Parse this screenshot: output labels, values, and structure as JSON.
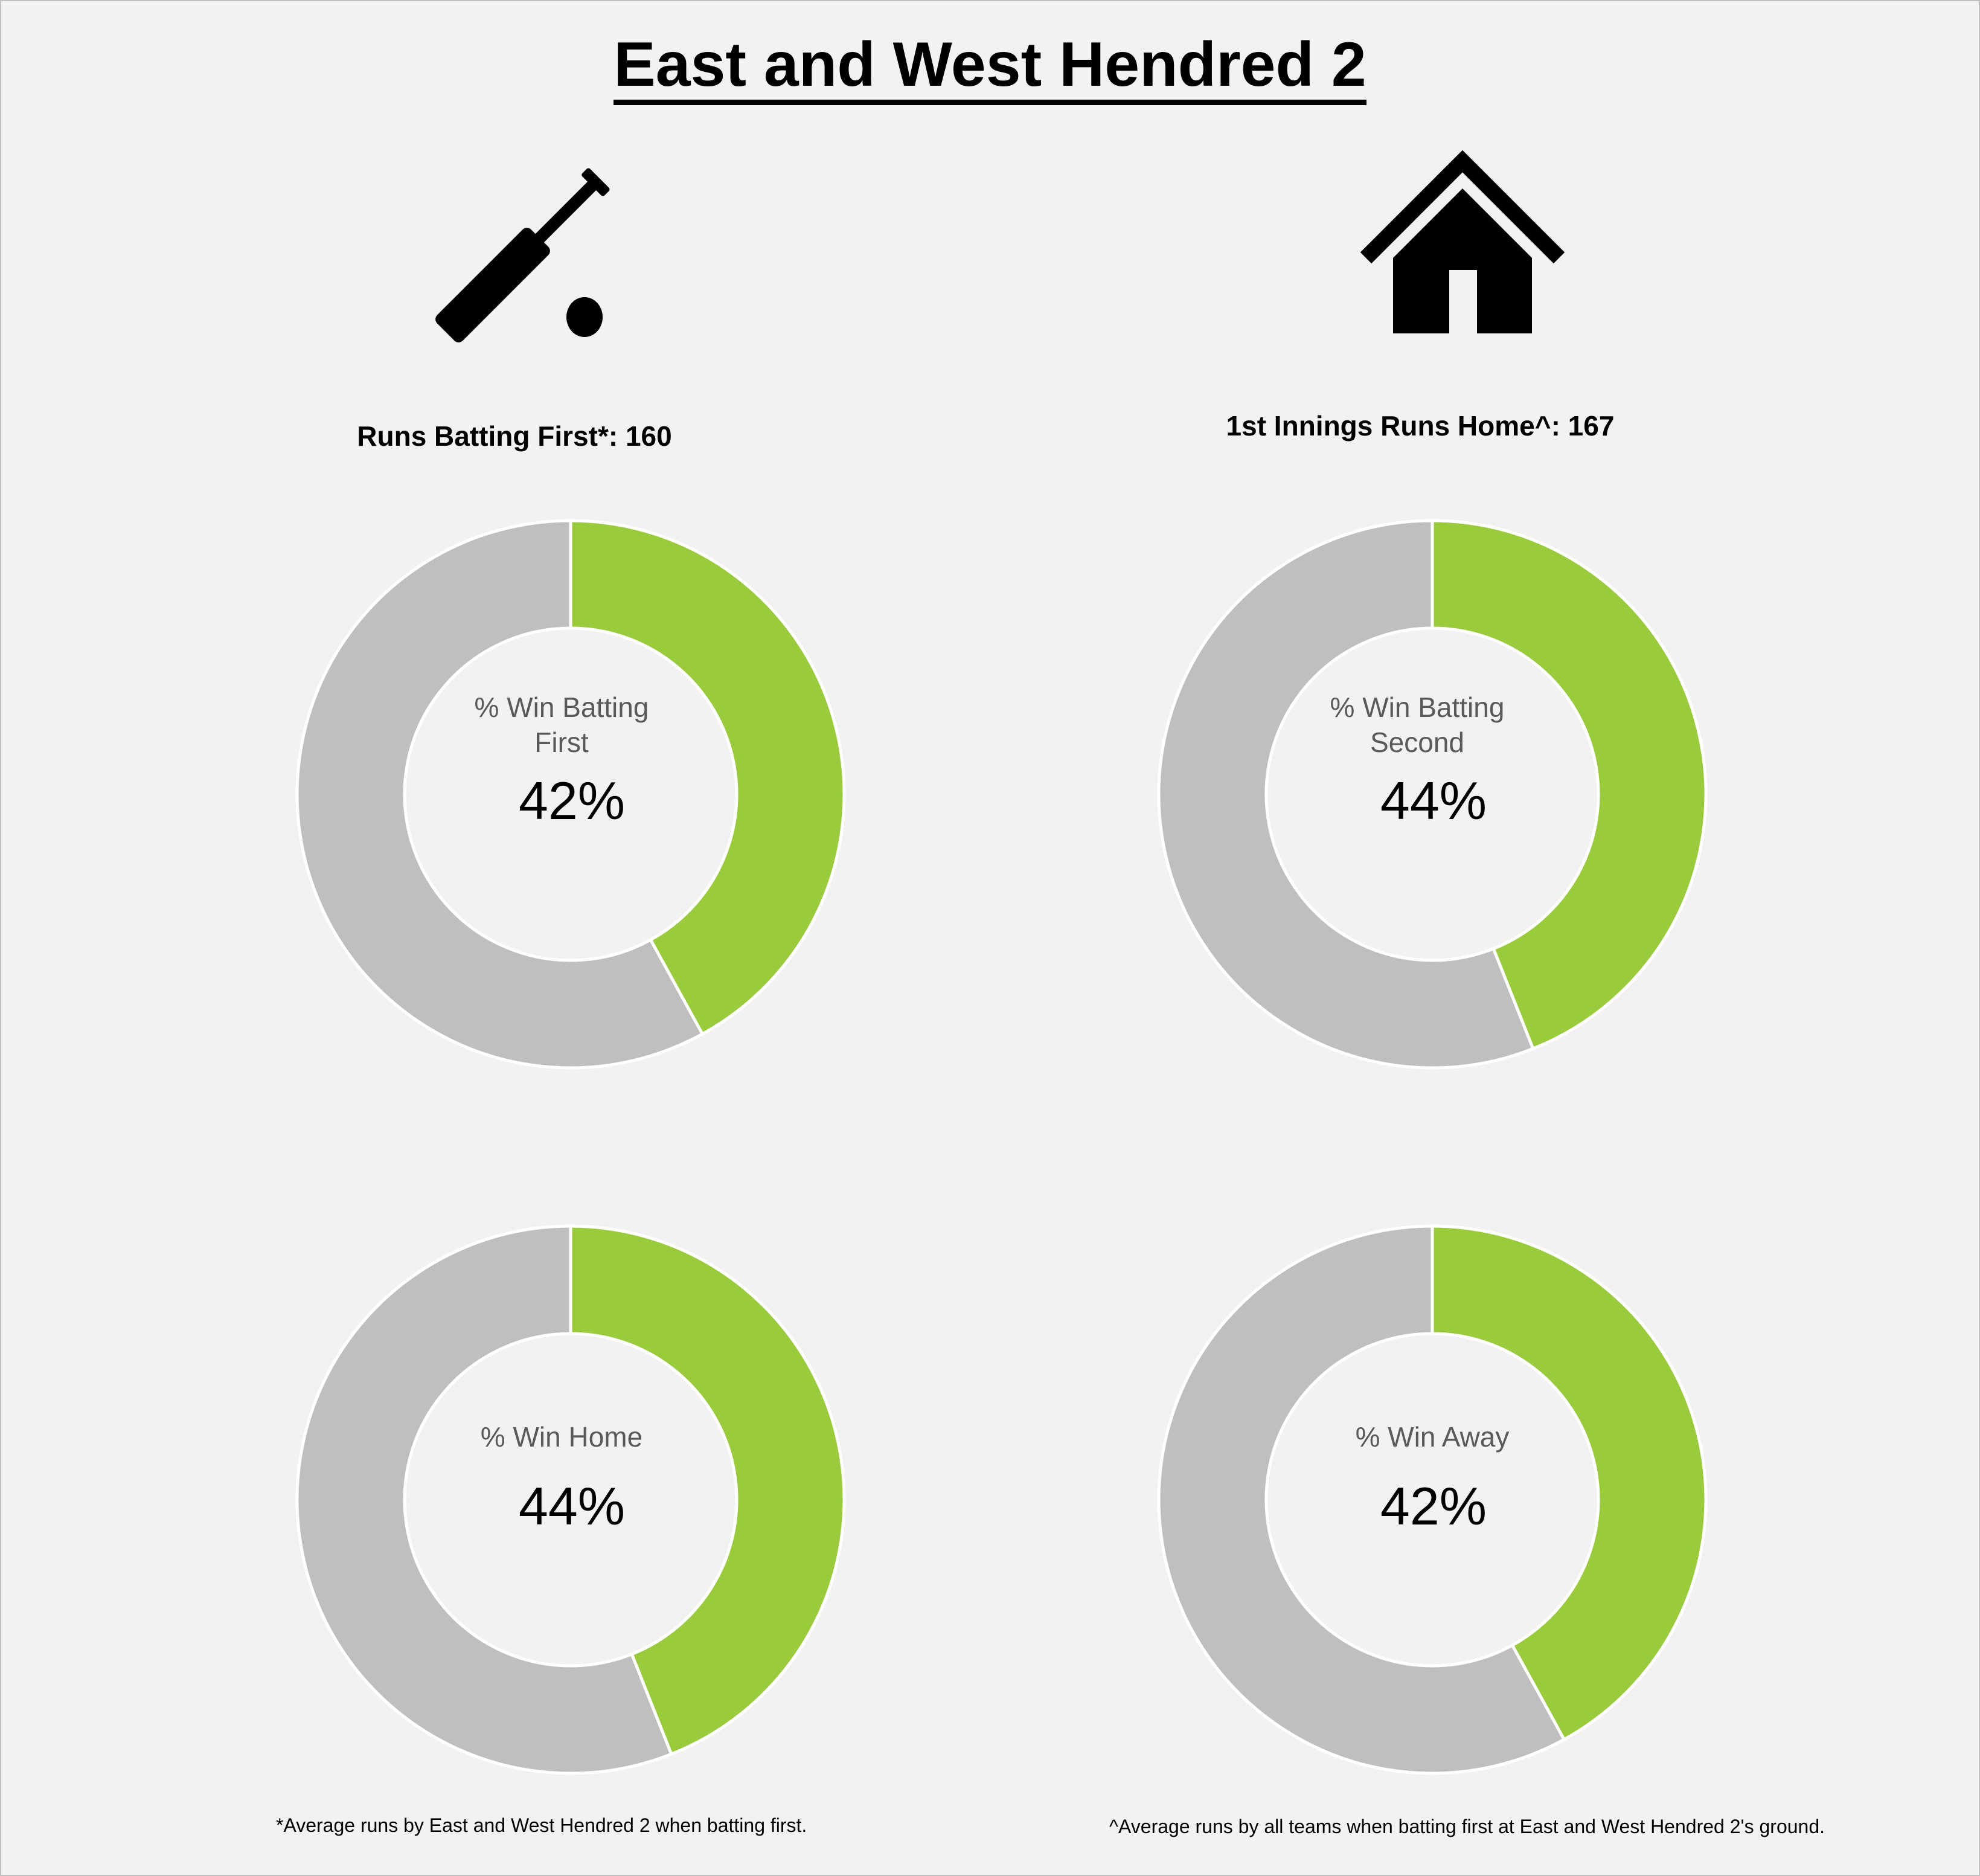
{
  "title": "East and West Hendred 2",
  "colors": {
    "win": "#9acb3d",
    "rest": "#bfbfbf",
    "background": "#f2f2f2",
    "separator": "#ffffff"
  },
  "icons": {
    "left": "cricket-bat-and-ball-icon",
    "right": "house-icon"
  },
  "stats": {
    "left": "Runs Batting First*: 160",
    "right": "1st Innings Runs Home^: 167"
  },
  "chart_data": [
    {
      "type": "pie",
      "style": "donut",
      "label_line1": "% Win Batting",
      "label_line2": "First",
      "value_label": "42%",
      "slices": [
        {
          "name": "Win",
          "value": 42
        },
        {
          "name": "Other",
          "value": 58
        }
      ]
    },
    {
      "type": "pie",
      "style": "donut",
      "label_line1": "% Win Batting",
      "label_line2": "Second",
      "value_label": "44%",
      "slices": [
        {
          "name": "Win",
          "value": 44
        },
        {
          "name": "Other",
          "value": 56
        }
      ]
    },
    {
      "type": "pie",
      "style": "donut",
      "label_line1": "% Win Home",
      "label_line2": "",
      "value_label": "44%",
      "slices": [
        {
          "name": "Win",
          "value": 44
        },
        {
          "name": "Other",
          "value": 56
        }
      ]
    },
    {
      "type": "pie",
      "style": "donut",
      "label_line1": "% Win Away",
      "label_line2": "",
      "value_label": "42%",
      "slices": [
        {
          "name": "Win",
          "value": 42
        },
        {
          "name": "Other",
          "value": 58
        }
      ]
    }
  ],
  "footnotes": {
    "left": "*Average runs by East and West Hendred 2 when batting first.",
    "right": "^Average runs by all teams when batting first at East and West Hendred 2's ground."
  }
}
